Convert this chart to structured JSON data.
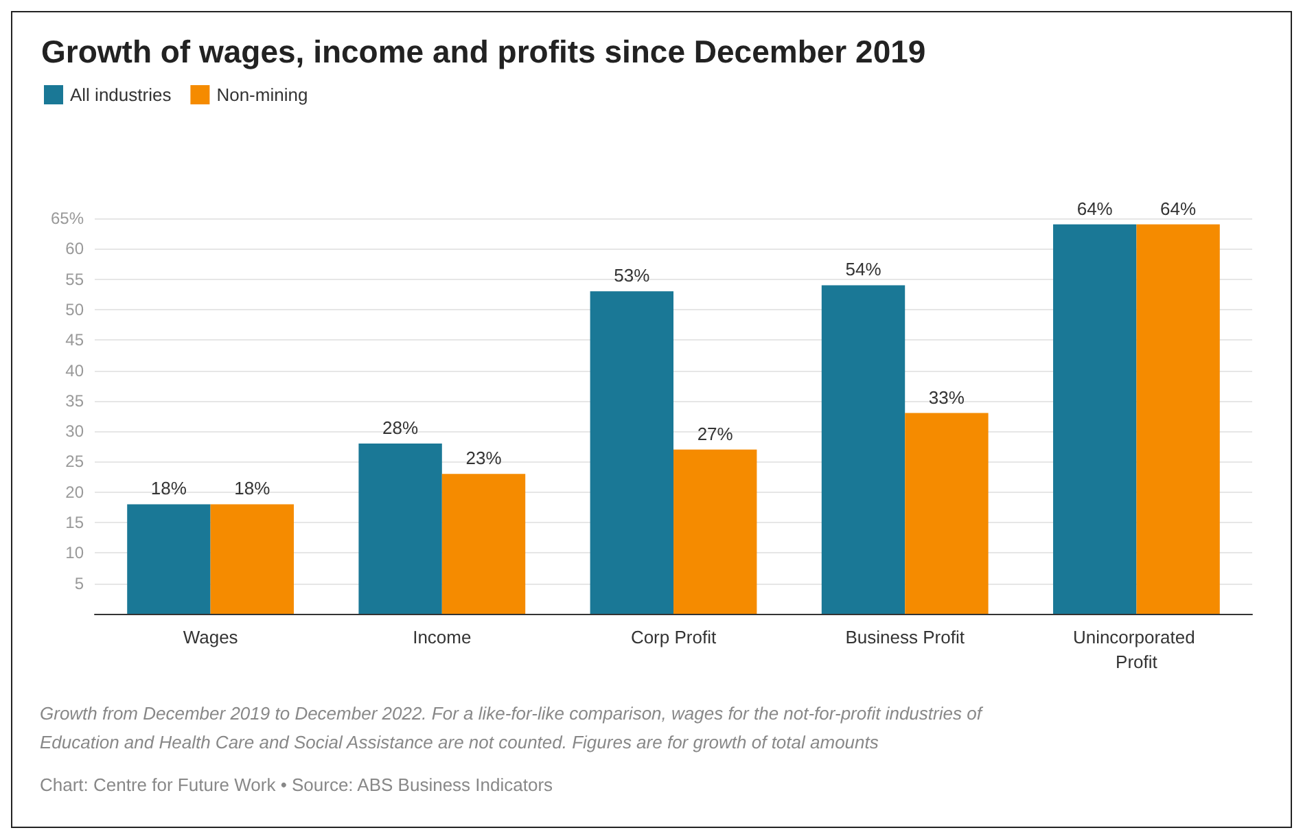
{
  "chart_data": {
    "type": "bar",
    "title": "Growth of wages, income and profits since December 2019",
    "categories": [
      "Wages",
      "Income",
      "Corp Profit",
      "Business Profit",
      "Unincorporated Profit"
    ],
    "series": [
      {
        "name": "All industries",
        "color": "#1a7896",
        "values": [
          18,
          28,
          53,
          54,
          64
        ],
        "value_labels": [
          "18%",
          "28%",
          "53%",
          "54%",
          "64%"
        ]
      },
      {
        "name": "Non-mining",
        "color": "#f58b00",
        "values": [
          18,
          23,
          27,
          33,
          64
        ],
        "value_labels": [
          "18%",
          "23%",
          "27%",
          "33%",
          "64%"
        ]
      }
    ],
    "ylim": [
      0,
      65
    ],
    "yticks": [
      5,
      10,
      15,
      20,
      25,
      30,
      35,
      40,
      45,
      50,
      55,
      60,
      {
        "value": 65,
        "label": "65%"
      }
    ],
    "grid": "y",
    "legend": "top left",
    "annotations": [
      "Growth from December 2019 to December 2022. For a like-for-like comparison, wages for the not-for-profit industries of Education and Health Care and Social Assistance are not counted. Figures are for growth of total amounts",
      "Chart: Centre for Future Work • Source: ABS Business Indicators"
    ]
  }
}
